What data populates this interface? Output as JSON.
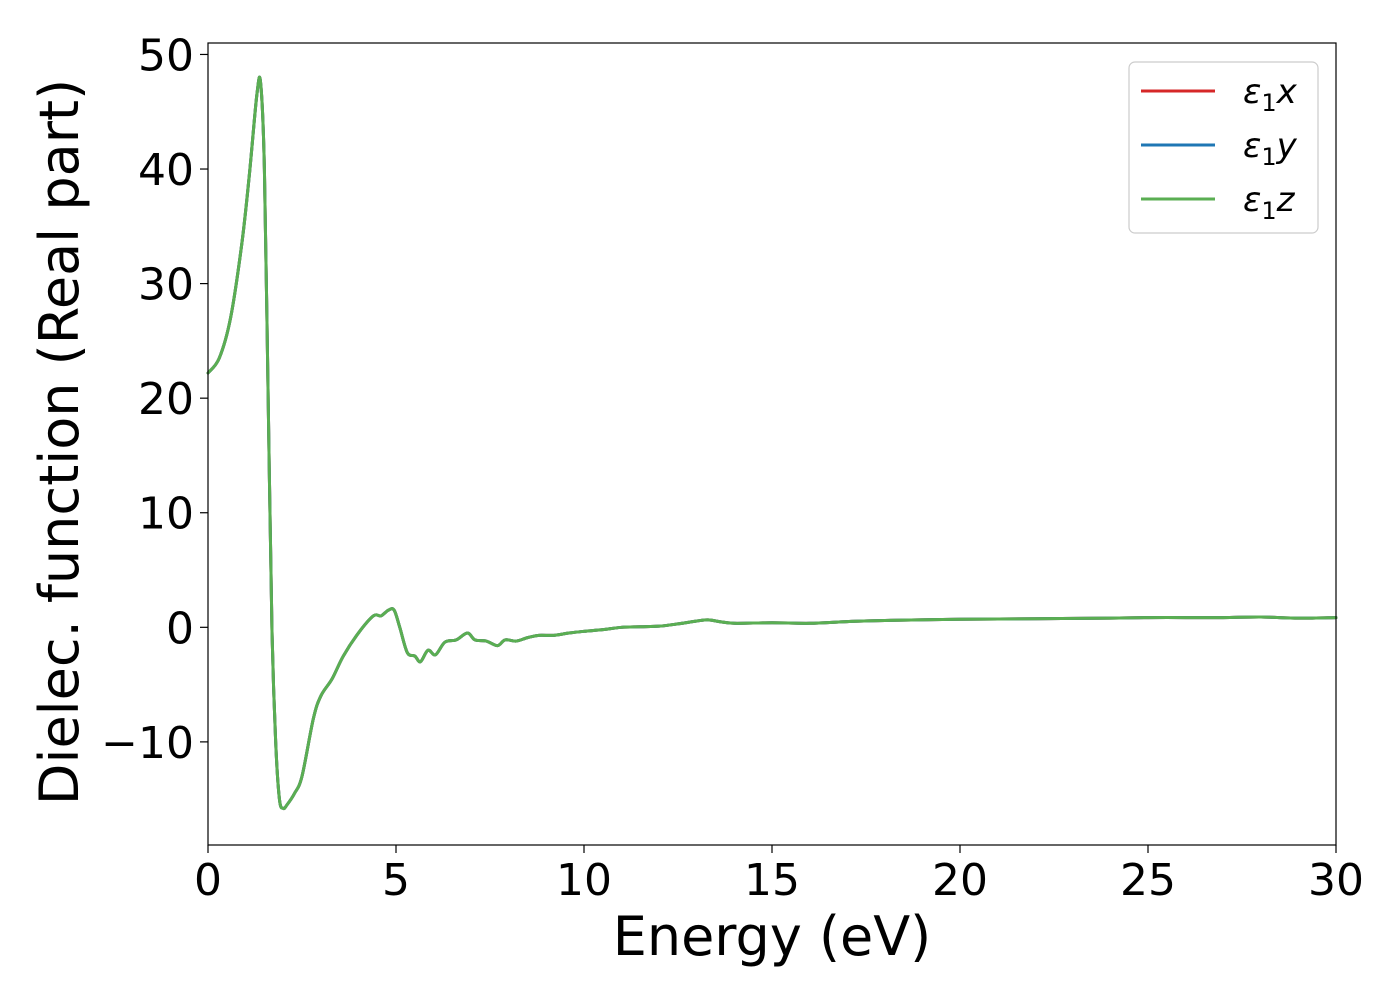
{
  "chart_data": {
    "type": "line",
    "xlabel": "Energy (eV)",
    "ylabel": "Dielec. function (Real part)",
    "xlim": [
      0,
      30
    ],
    "ylim": [
      -19,
      51
    ],
    "xticks": [
      0,
      5,
      10,
      15,
      20,
      25,
      30
    ],
    "yticks": [
      -10,
      0,
      10,
      20,
      30,
      40,
      50
    ],
    "xtick_labels": [
      "0",
      "5",
      "10",
      "15",
      "20",
      "25",
      "30"
    ],
    "ytick_labels": [
      "−10",
      "0",
      "10",
      "20",
      "30",
      "40",
      "50"
    ],
    "grid": false,
    "legend_position": "top-right",
    "series": [
      {
        "name": "ε1x",
        "legend_base": "ε",
        "legend_sub": "1",
        "legend_tail": "x",
        "color": "#d62728",
        "x": [
          0,
          0.3,
          0.6,
          0.9,
          1.1,
          1.3,
          1.4,
          1.5,
          1.6,
          1.7,
          1.8,
          1.9,
          2.0,
          2.1,
          2.3,
          2.5,
          2.8,
          3.0,
          3.3,
          3.6,
          4.0,
          4.4,
          4.6,
          4.8,
          4.95,
          5.1,
          5.3,
          5.5,
          5.65,
          5.85,
          6.05,
          6.3,
          6.6,
          6.9,
          7.1,
          7.4,
          7.7,
          7.9,
          8.2,
          8.5,
          8.8,
          9.2,
          9.6,
          10.0,
          10.5,
          11.0,
          11.5,
          12.0,
          12.5,
          13.0,
          13.3,
          13.6,
          14.0,
          15.0,
          16.0,
          17.0,
          18.0,
          20.0,
          22.0,
          24.0,
          25.0,
          26.0,
          27.0,
          28.0,
          29.0,
          30.0
        ],
        "y": [
          22.2,
          23.5,
          27.0,
          33.5,
          39.5,
          46.5,
          47.5,
          40.0,
          20.0,
          0.0,
          -10.0,
          -15.0,
          -15.8,
          -15.5,
          -14.5,
          -13.0,
          -8.0,
          -6.0,
          -4.5,
          -2.5,
          -0.5,
          1.0,
          1.0,
          1.5,
          1.5,
          0.0,
          -2.2,
          -2.5,
          -3.0,
          -2.0,
          -2.4,
          -1.3,
          -1.1,
          -0.5,
          -1.1,
          -1.2,
          -1.6,
          -1.1,
          -1.2,
          -0.9,
          -0.7,
          -0.7,
          -0.5,
          -0.35,
          -0.2,
          0.0,
          0.05,
          0.1,
          0.3,
          0.55,
          0.65,
          0.5,
          0.35,
          0.4,
          0.35,
          0.5,
          0.6,
          0.7,
          0.75,
          0.8,
          0.85,
          0.85,
          0.85,
          0.9,
          0.8,
          0.85
        ]
      },
      {
        "name": "ε1y",
        "legend_base": "ε",
        "legend_sub": "1",
        "legend_tail": "y",
        "color": "#1f77b4",
        "x": [
          0,
          0.3,
          0.6,
          0.9,
          1.1,
          1.3,
          1.4,
          1.5,
          1.6,
          1.7,
          1.8,
          1.9,
          2.0,
          2.1,
          2.3,
          2.5,
          2.8,
          3.0,
          3.3,
          3.6,
          4.0,
          4.4,
          4.6,
          4.8,
          4.95,
          5.1,
          5.3,
          5.5,
          5.65,
          5.85,
          6.05,
          6.3,
          6.6,
          6.9,
          7.1,
          7.4,
          7.7,
          7.9,
          8.2,
          8.5,
          8.8,
          9.2,
          9.6,
          10.0,
          10.5,
          11.0,
          11.5,
          12.0,
          12.5,
          13.0,
          13.3,
          13.6,
          14.0,
          15.0,
          16.0,
          17.0,
          18.0,
          20.0,
          22.0,
          24.0,
          25.0,
          26.0,
          27.0,
          28.0,
          29.0,
          30.0
        ],
        "y": [
          22.2,
          23.5,
          27.0,
          33.5,
          39.5,
          46.5,
          47.5,
          40.0,
          20.0,
          0.0,
          -10.0,
          -15.0,
          -15.8,
          -15.5,
          -14.5,
          -13.0,
          -8.0,
          -6.0,
          -4.5,
          -2.5,
          -0.5,
          1.0,
          1.0,
          1.5,
          1.5,
          0.0,
          -2.2,
          -2.5,
          -3.0,
          -2.0,
          -2.4,
          -1.3,
          -1.1,
          -0.5,
          -1.1,
          -1.2,
          -1.6,
          -1.1,
          -1.2,
          -0.9,
          -0.7,
          -0.7,
          -0.5,
          -0.35,
          -0.2,
          0.0,
          0.05,
          0.1,
          0.3,
          0.55,
          0.65,
          0.5,
          0.35,
          0.4,
          0.35,
          0.5,
          0.6,
          0.7,
          0.75,
          0.8,
          0.85,
          0.85,
          0.85,
          0.9,
          0.8,
          0.85
        ]
      },
      {
        "name": "ε1z",
        "legend_base": "ε",
        "legend_sub": "1",
        "legend_tail": "z",
        "color": "#5aae52",
        "x": [
          0,
          0.3,
          0.6,
          0.9,
          1.1,
          1.3,
          1.4,
          1.5,
          1.6,
          1.7,
          1.8,
          1.9,
          2.0,
          2.1,
          2.3,
          2.5,
          2.8,
          3.0,
          3.3,
          3.6,
          4.0,
          4.4,
          4.6,
          4.8,
          4.95,
          5.1,
          5.3,
          5.5,
          5.65,
          5.85,
          6.05,
          6.3,
          6.6,
          6.9,
          7.1,
          7.4,
          7.7,
          7.9,
          8.2,
          8.5,
          8.8,
          9.2,
          9.6,
          10.0,
          10.5,
          11.0,
          11.5,
          12.0,
          12.5,
          13.0,
          13.3,
          13.6,
          14.0,
          15.0,
          16.0,
          17.0,
          18.0,
          20.0,
          22.0,
          24.0,
          25.0,
          26.0,
          27.0,
          28.0,
          29.0,
          30.0
        ],
        "y": [
          22.2,
          23.5,
          27.0,
          33.5,
          39.5,
          46.5,
          47.5,
          40.0,
          20.0,
          0.0,
          -10.0,
          -15.0,
          -15.8,
          -15.5,
          -14.5,
          -13.0,
          -8.0,
          -6.0,
          -4.5,
          -2.5,
          -0.5,
          1.0,
          1.0,
          1.5,
          1.5,
          0.0,
          -2.2,
          -2.5,
          -3.0,
          -2.0,
          -2.4,
          -1.3,
          -1.1,
          -0.5,
          -1.1,
          -1.2,
          -1.6,
          -1.1,
          -1.2,
          -0.9,
          -0.7,
          -0.7,
          -0.5,
          -0.35,
          -0.2,
          0.0,
          0.05,
          0.1,
          0.3,
          0.55,
          0.65,
          0.5,
          0.35,
          0.4,
          0.35,
          0.5,
          0.6,
          0.7,
          0.75,
          0.8,
          0.85,
          0.85,
          0.85,
          0.9,
          0.8,
          0.85
        ]
      }
    ]
  }
}
